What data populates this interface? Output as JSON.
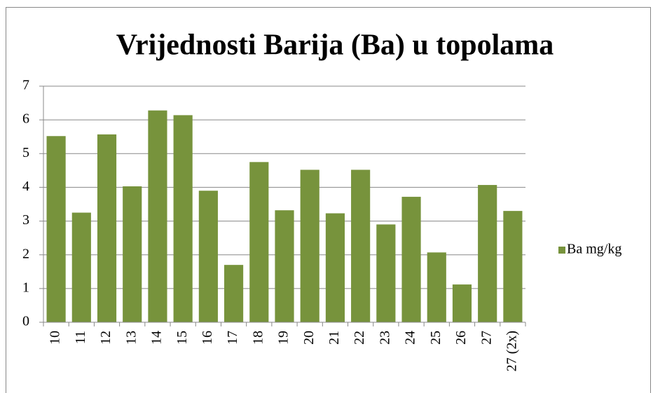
{
  "chart_data": {
    "type": "bar",
    "title": "Vrijednosti Barija (Ba) u topolama",
    "categories": [
      "10",
      "11",
      "12",
      "13",
      "14",
      "15",
      "16",
      "17",
      "18",
      "19",
      "20",
      "21",
      "22",
      "23",
      "24",
      "25",
      "26",
      "27",
      "27 (2x)"
    ],
    "series": [
      {
        "name": "Ba mg/kg",
        "color": "#77933c",
        "values": [
          5.52,
          3.25,
          5.57,
          4.03,
          6.28,
          6.14,
          3.9,
          1.7,
          4.75,
          3.32,
          4.52,
          3.23,
          4.52,
          2.9,
          3.72,
          2.07,
          1.12,
          4.07,
          3.3
        ]
      }
    ],
    "ylim": [
      0,
      7
    ],
    "yticks": [
      0,
      1,
      2,
      3,
      4,
      5,
      6,
      7
    ],
    "grid": true,
    "legend": "right"
  }
}
